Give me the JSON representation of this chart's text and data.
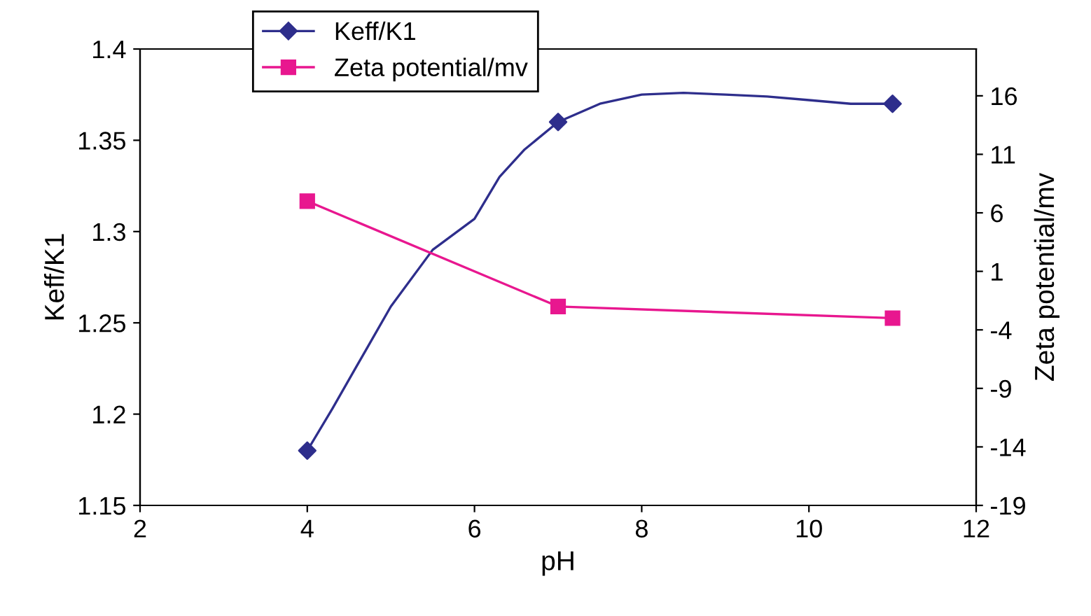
{
  "chart_data": {
    "type": "line",
    "xlabel": "pH",
    "ylabel": "Keff/K1",
    "y2label": "Zeta potential/mv",
    "xlim": [
      2,
      12
    ],
    "xticks": [
      2,
      4,
      6,
      8,
      10,
      12
    ],
    "ylim": [
      1.15,
      1.4
    ],
    "yticks": [
      1.15,
      1.2,
      1.25,
      1.3,
      1.35,
      1.4
    ],
    "y2lim": [
      -19,
      20
    ],
    "y2ticks": [
      -19,
      -14,
      -9,
      -4,
      1,
      6,
      11,
      16
    ],
    "legend": "top left",
    "grid": false,
    "series": [
      {
        "color": "#2e2e8c",
        "marker": "none",
        "x": [
          4,
          4.3,
          4.7,
          5,
          5.5,
          6,
          6.3,
          6.6,
          7,
          7.5,
          8,
          8.5,
          9,
          9.5,
          10,
          10.5,
          11
        ],
        "values": [
          1.18,
          1.203,
          1.235,
          1.259,
          1.29,
          1.307,
          1.33,
          1.345,
          1.36,
          1.37,
          1.375,
          1.376,
          1.375,
          1.374,
          1.372,
          1.37,
          1.37
        ]
      },
      {
        "type": "scatter",
        "name": "Keff/K1",
        "color": "#2e2e8c",
        "marker": "diamond",
        "x": [
          4,
          7,
          11
        ],
        "values": [
          1.18,
          1.36,
          1.37
        ]
      },
      {
        "name": "Zeta potential/mv",
        "color": "#e8178f",
        "marker": "square",
        "axis": "y2",
        "x": [
          4,
          7,
          11
        ],
        "values": [
          7,
          -2,
          -3
        ]
      }
    ]
  }
}
